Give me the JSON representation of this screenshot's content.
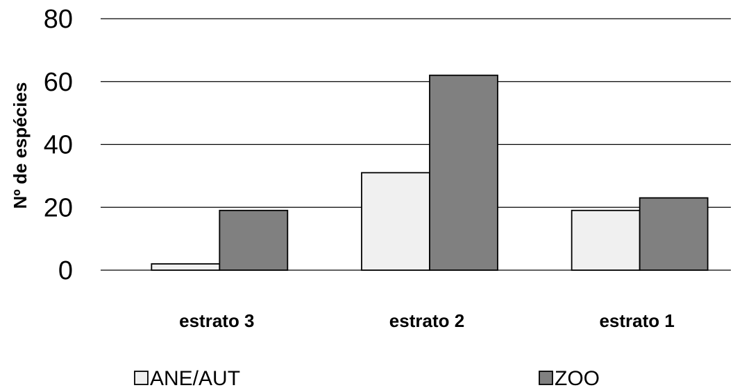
{
  "chart_data": {
    "type": "bar",
    "ylabel": "Nº de espécies",
    "xlabel": "",
    "title": "",
    "categories": [
      "estrato 3",
      "estrato 2",
      "estrato 1"
    ],
    "series": [
      {
        "name": "ANE/AUT",
        "values": [
          2,
          31,
          19
        ],
        "color": "#f0f0f0"
      },
      {
        "name": "ZOO",
        "values": [
          19,
          62,
          23
        ],
        "color": "#808080"
      }
    ],
    "ylim": [
      0,
      80
    ],
    "yticks": [
      0,
      20,
      40,
      60,
      80
    ],
    "grid": true,
    "legend_position": "bottom"
  }
}
